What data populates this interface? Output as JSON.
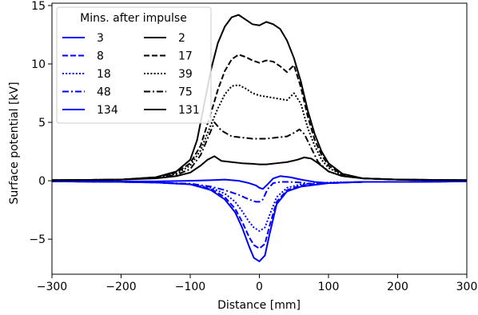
{
  "chart_data": {
    "type": "line",
    "xlabel": "Distance [mm]",
    "ylabel": "Surface potential [kV]",
    "xlim": [
      -300,
      300
    ],
    "ylim": [
      -8,
      15.2
    ],
    "xticks": [
      -300,
      -200,
      -100,
      0,
      100,
      200,
      300
    ],
    "xtick_labels": [
      "−300",
      "−200",
      "−100",
      "0",
      "100",
      "200",
      "300"
    ],
    "yticks": [
      -5,
      0,
      5,
      10,
      15
    ],
    "ytick_labels": [
      "−5",
      "0",
      "5",
      "10",
      "15"
    ],
    "grid": false,
    "legend": {
      "title": "Mins. after impulse",
      "placement": "upper-left",
      "columns": 2
    },
    "colors": {
      "blue": "#0000ff",
      "black": "#000000"
    },
    "series": [
      {
        "name": "3",
        "color": "#0000ff",
        "style": "solid",
        "x": [
          -300,
          -200,
          -150,
          -100,
          -70,
          -50,
          -35,
          -25,
          -15,
          -8,
          0,
          8,
          15,
          25,
          40,
          60,
          100,
          150,
          200,
          300
        ],
        "y": [
          -0.05,
          -0.1,
          -0.15,
          -0.3,
          -0.8,
          -1.6,
          -2.7,
          -4.0,
          -5.6,
          -6.6,
          -6.9,
          -6.4,
          -4.5,
          -2.0,
          -0.9,
          -0.5,
          -0.2,
          -0.1,
          -0.1,
          -0.05
        ]
      },
      {
        "name": "8",
        "color": "#0000ff",
        "style": "dashed",
        "x": [
          -300,
          -200,
          -150,
          -100,
          -70,
          -50,
          -35,
          -25,
          -15,
          -8,
          0,
          8,
          15,
          25,
          40,
          60,
          100,
          150,
          200,
          300
        ],
        "y": [
          -0.05,
          -0.1,
          -0.15,
          -0.3,
          -0.7,
          -1.4,
          -2.4,
          -3.5,
          -4.8,
          -5.5,
          -5.8,
          -5.4,
          -3.8,
          -1.8,
          -0.8,
          -0.4,
          -0.2,
          -0.1,
          -0.1,
          -0.05
        ]
      },
      {
        "name": "18",
        "color": "#0000ff",
        "style": "dotted",
        "x": [
          -300,
          -200,
          -150,
          -100,
          -70,
          -50,
          -35,
          -25,
          -15,
          -8,
          0,
          8,
          15,
          25,
          40,
          60,
          100,
          150,
          200,
          300
        ],
        "y": [
          -0.05,
          -0.1,
          -0.15,
          -0.3,
          -0.6,
          -1.1,
          -1.8,
          -2.6,
          -3.5,
          -4.0,
          -4.3,
          -4.0,
          -2.9,
          -1.4,
          -0.6,
          -0.3,
          -0.15,
          -0.1,
          -0.1,
          -0.05
        ]
      },
      {
        "name": "48",
        "color": "#0000ff",
        "style": "dashdot",
        "x": [
          -300,
          -200,
          -150,
          -100,
          -70,
          -50,
          -30,
          -15,
          -5,
          0,
          5,
          12,
          20,
          30,
          45,
          60,
          80,
          100,
          150,
          200,
          300
        ],
        "y": [
          -0.05,
          -0.1,
          -0.15,
          -0.25,
          -0.5,
          -0.8,
          -1.2,
          -1.6,
          -1.8,
          -1.8,
          -1.6,
          -0.7,
          -0.2,
          -0.1,
          -0.1,
          -0.15,
          -0.3,
          -0.2,
          -0.1,
          -0.1,
          -0.05
        ]
      },
      {
        "name": "134",
        "color": "#0000ff",
        "style": "solid",
        "x": [
          -300,
          -200,
          -150,
          -100,
          -70,
          -50,
          -30,
          -15,
          -5,
          0,
          5,
          12,
          20,
          30,
          45,
          60,
          80,
          100,
          150,
          200,
          300
        ],
        "y": [
          -0.05,
          -0.05,
          -0.05,
          0.0,
          0.05,
          0.1,
          0.0,
          -0.2,
          -0.4,
          -0.6,
          -0.7,
          -0.3,
          0.2,
          0.4,
          0.3,
          0.1,
          -0.1,
          -0.2,
          -0.1,
          -0.1,
          -0.05
        ]
      },
      {
        "name": "2",
        "color": "#000000",
        "style": "solid",
        "x": [
          -300,
          -200,
          -150,
          -120,
          -100,
          -90,
          -80,
          -70,
          -60,
          -50,
          -40,
          -30,
          -20,
          -10,
          0,
          10,
          20,
          30,
          40,
          50,
          60,
          70,
          80,
          90,
          100,
          120,
          150,
          200,
          300
        ],
        "y": [
          0.05,
          0.1,
          0.3,
          0.8,
          1.8,
          3.5,
          6.5,
          9.5,
          11.8,
          13.2,
          14.0,
          14.2,
          13.8,
          13.4,
          13.3,
          13.6,
          13.4,
          13.0,
          12.0,
          10.5,
          8.5,
          6.0,
          4.0,
          2.5,
          1.5,
          0.6,
          0.2,
          0.1,
          0.05
        ]
      },
      {
        "name": "17",
        "color": "#000000",
        "style": "dashed",
        "x": [
          -300,
          -200,
          -150,
          -120,
          -100,
          -85,
          -70,
          -60,
          -50,
          -40,
          -30,
          -20,
          -10,
          0,
          10,
          20,
          30,
          40,
          50,
          60,
          70,
          80,
          90,
          100,
          120,
          150,
          200,
          300
        ],
        "y": [
          0.05,
          0.1,
          0.3,
          0.7,
          1.5,
          3.0,
          5.8,
          7.8,
          9.4,
          10.4,
          10.8,
          10.6,
          10.3,
          10.1,
          10.3,
          10.2,
          9.8,
          9.3,
          9.9,
          8.0,
          5.5,
          3.5,
          2.2,
          1.3,
          0.5,
          0.2,
          0.1,
          0.05
        ]
      },
      {
        "name": "39",
        "color": "#000000",
        "style": "dotted",
        "x": [
          -300,
          -200,
          -150,
          -120,
          -100,
          -85,
          -70,
          -60,
          -50,
          -40,
          -30,
          -20,
          -10,
          0,
          10,
          20,
          30,
          40,
          50,
          60,
          70,
          80,
          90,
          100,
          120,
          150,
          200,
          300
        ],
        "y": [
          0.05,
          0.1,
          0.3,
          0.6,
          1.3,
          2.6,
          4.8,
          6.2,
          7.4,
          8.1,
          8.2,
          7.9,
          7.5,
          7.3,
          7.2,
          7.1,
          7.0,
          6.9,
          7.5,
          6.6,
          4.5,
          3.0,
          1.8,
          1.1,
          0.5,
          0.2,
          0.1,
          0.05
        ]
      },
      {
        "name": "75",
        "color": "#000000",
        "style": "dashdot",
        "x": [
          -300,
          -200,
          -150,
          -120,
          -100,
          -85,
          -75,
          -65,
          -55,
          -40,
          -25,
          -10,
          0,
          10,
          25,
          40,
          50,
          58,
          65,
          75,
          85,
          100,
          120,
          150,
          200,
          300
        ],
        "y": [
          0.05,
          0.1,
          0.25,
          0.5,
          1.0,
          2.2,
          3.6,
          5.0,
          4.3,
          3.8,
          3.7,
          3.6,
          3.6,
          3.6,
          3.7,
          3.8,
          4.1,
          4.4,
          4.0,
          2.8,
          1.6,
          0.8,
          0.4,
          0.2,
          0.1,
          0.05
        ]
      },
      {
        "name": "131",
        "color": "#000000",
        "style": "solid",
        "x": [
          -300,
          -200,
          -150,
          -120,
          -100,
          -85,
          -75,
          -65,
          -55,
          -40,
          -25,
          -10,
          0,
          10,
          25,
          40,
          55,
          65,
          75,
          85,
          100,
          120,
          150,
          200,
          300
        ],
        "y": [
          0.05,
          0.1,
          0.2,
          0.4,
          0.7,
          1.3,
          1.8,
          2.1,
          1.7,
          1.6,
          1.5,
          1.45,
          1.4,
          1.4,
          1.5,
          1.6,
          1.8,
          2.0,
          1.9,
          1.5,
          0.8,
          0.4,
          0.2,
          0.1,
          0.05
        ]
      }
    ]
  }
}
